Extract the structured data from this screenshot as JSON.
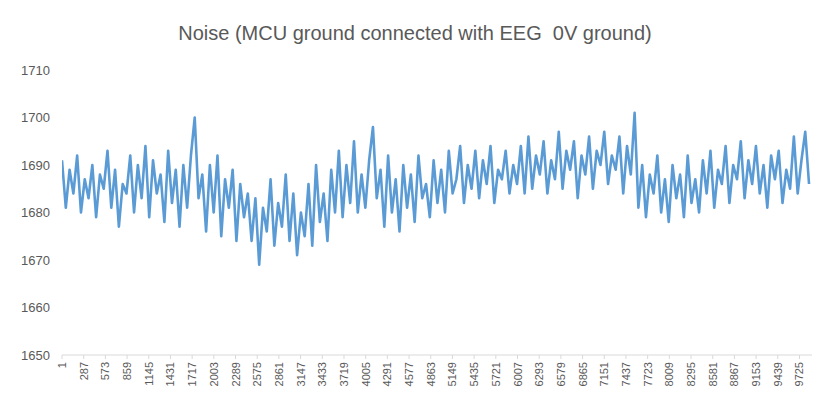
{
  "chart_data": {
    "type": "line",
    "title": "Noise (MCU ground connected with EEG  0V ground)",
    "color": "#5b9bd5",
    "grid": false,
    "xlim": [
      1,
      9890
    ],
    "ylim": [
      1650,
      1710
    ],
    "yticks": [
      1650,
      1660,
      1670,
      1680,
      1690,
      1700,
      1710
    ],
    "xticks": [
      1,
      287,
      573,
      859,
      1145,
      1431,
      1717,
      2003,
      2289,
      2575,
      2861,
      3147,
      3433,
      3719,
      4005,
      4291,
      4577,
      4863,
      5149,
      5435,
      5721,
      6007,
      6293,
      6579,
      6865,
      7151,
      7437,
      7723,
      8009,
      8295,
      8581,
      8867,
      9153,
      9439,
      9725
    ],
    "x": [
      1,
      51,
      101,
      151,
      201,
      251,
      301,
      351,
      401,
      451,
      501,
      551,
      601,
      651,
      701,
      751,
      801,
      851,
      901,
      951,
      1001,
      1051,
      1101,
      1151,
      1201,
      1251,
      1301,
      1351,
      1401,
      1451,
      1501,
      1551,
      1601,
      1651,
      1701,
      1751,
      1801,
      1851,
      1901,
      1951,
      2001,
      2051,
      2101,
      2151,
      2201,
      2251,
      2301,
      2351,
      2401,
      2451,
      2501,
      2551,
      2601,
      2651,
      2701,
      2751,
      2801,
      2851,
      2901,
      2951,
      3001,
      3051,
      3101,
      3151,
      3201,
      3251,
      3301,
      3351,
      3401,
      3451,
      3501,
      3551,
      3601,
      3651,
      3701,
      3751,
      3801,
      3851,
      3901,
      3951,
      4001,
      4051,
      4101,
      4151,
      4201,
      4251,
      4301,
      4351,
      4401,
      4451,
      4501,
      4551,
      4601,
      4651,
      4701,
      4751,
      4801,
      4851,
      4901,
      4951,
      5001,
      5051,
      5101,
      5151,
      5201,
      5251,
      5301,
      5351,
      5401,
      5451,
      5501,
      5551,
      5601,
      5651,
      5701,
      5751,
      5801,
      5851,
      5901,
      5951,
      6001,
      6051,
      6101,
      6151,
      6201,
      6251,
      6301,
      6351,
      6401,
      6451,
      6501,
      6551,
      6601,
      6651,
      6701,
      6751,
      6801,
      6851,
      6901,
      6951,
      7001,
      7051,
      7101,
      7151,
      7201,
      7251,
      7301,
      7351,
      7401,
      7451,
      7501,
      7551,
      7601,
      7651,
      7701,
      7751,
      7801,
      7851,
      7901,
      7951,
      8001,
      8051,
      8101,
      8151,
      8201,
      8251,
      8301,
      8351,
      8401,
      8451,
      8501,
      8551,
      8601,
      8651,
      8701,
      8751,
      8801,
      8851,
      8901,
      8951,
      9001,
      9051,
      9101,
      9151,
      9201,
      9251,
      9301,
      9351,
      9401,
      9451,
      9501,
      9551,
      9601,
      9651,
      9701,
      9751,
      9801,
      9851
    ],
    "values": [
      1691,
      1681,
      1689,
      1684,
      1692,
      1680,
      1687,
      1683,
      1690,
      1679,
      1688,
      1685,
      1693,
      1681,
      1689,
      1677,
      1686,
      1684,
      1692,
      1680,
      1690,
      1683,
      1694,
      1679,
      1691,
      1684,
      1688,
      1678,
      1693,
      1682,
      1689,
      1677,
      1690,
      1681,
      1692,
      1700,
      1683,
      1688,
      1676,
      1690,
      1680,
      1692,
      1675,
      1687,
      1681,
      1689,
      1674,
      1686,
      1679,
      1684,
      1674,
      1683,
      1669,
      1681,
      1676,
      1687,
      1673,
      1682,
      1677,
      1688,
      1674,
      1684,
      1671,
      1680,
      1675,
      1686,
      1673,
      1690,
      1678,
      1684,
      1674,
      1689,
      1680,
      1693,
      1679,
      1690,
      1682,
      1695,
      1680,
      1688,
      1681,
      1691,
      1698,
      1683,
      1689,
      1677,
      1692,
      1680,
      1687,
      1676,
      1690,
      1681,
      1688,
      1678,
      1692,
      1683,
      1686,
      1679,
      1691,
      1682,
      1689,
      1680,
      1693,
      1684,
      1687,
      1694,
      1682,
      1690,
      1685,
      1693,
      1683,
      1691,
      1686,
      1694,
      1682,
      1689,
      1687,
      1693,
      1684,
      1690,
      1686,
      1694,
      1684,
      1696,
      1685,
      1692,
      1688,
      1695,
      1684,
      1691,
      1687,
      1697,
      1685,
      1693,
      1689,
      1695,
      1683,
      1692,
      1688,
      1696,
      1685,
      1693,
      1690,
      1697,
      1686,
      1692,
      1689,
      1696,
      1684,
      1694,
      1688,
      1701,
      1681,
      1690,
      1679,
      1688,
      1684,
      1692,
      1680,
      1687,
      1678,
      1690,
      1683,
      1688,
      1679,
      1692,
      1682,
      1687,
      1680,
      1691,
      1684,
      1693,
      1681,
      1689,
      1686,
      1694,
      1682,
      1690,
      1687,
      1695,
      1683,
      1691,
      1686,
      1694,
      1684,
      1690,
      1681,
      1692,
      1687,
      1693,
      1682,
      1689,
      1685,
      1696,
      1684,
      1691,
      1697,
      1686
    ]
  }
}
